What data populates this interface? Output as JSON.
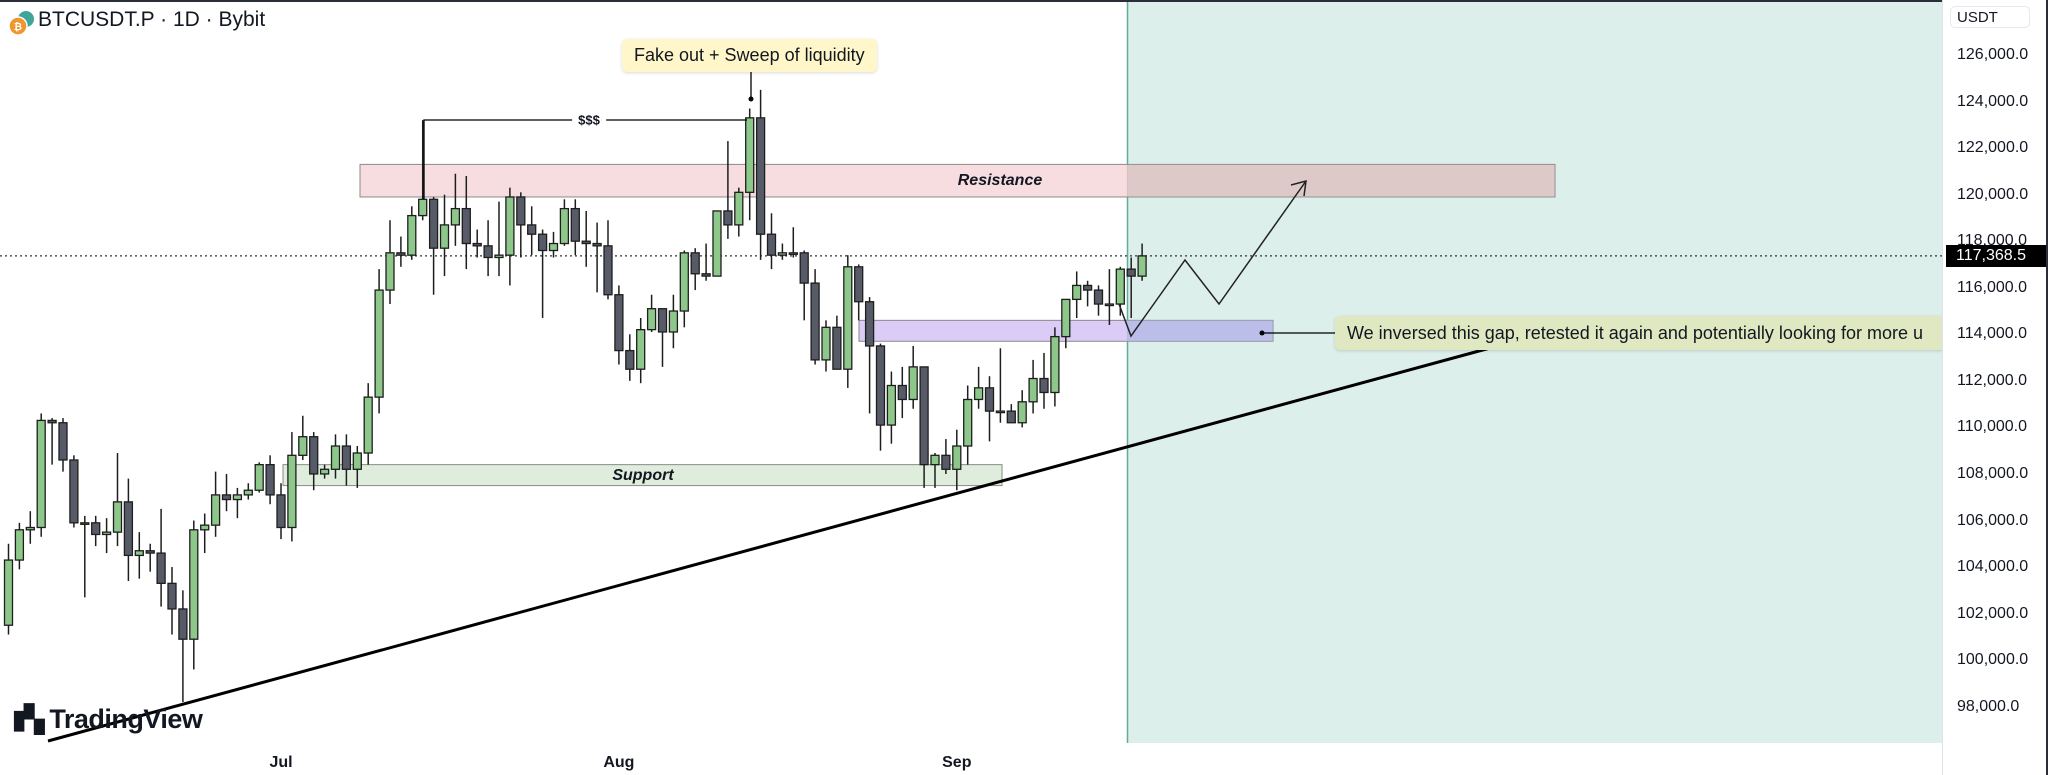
{
  "header": {
    "title": "BTCUSDT.P · 1D · Bybit",
    "icon": "bitcoin-coin-icon"
  },
  "axis": {
    "unit": "USDT",
    "current_price_label": "117,368.5"
  },
  "annotations": {
    "fake_out": "Fake out + Sweep of liquidity",
    "liquidity": "$$$",
    "resistance": "Resistance",
    "support": "Support",
    "gap_note": "We inversed this gap, retested it again and potentially looking for more u"
  },
  "logo": "TradingView",
  "colors": {
    "up": "#8dc78a",
    "down": "#565b67",
    "resistance": "#f6d7da",
    "support": "#dcebd9",
    "gap": "#d6c6f5",
    "projection_zone": "#dcefea"
  },
  "chart_data": {
    "type": "candlestick",
    "symbol": "BTCUSDT.P",
    "interval": "1D",
    "ylim": [
      97000,
      127500
    ],
    "y_ticks": [
      "126,000.0",
      "124,000.0",
      "122,000.0",
      "120,000.0",
      "118,000.0",
      "116,000.0",
      "114,000.0",
      "112,000.0",
      "110,000.0",
      "108,000.0",
      "106,000.0",
      "104,000.0",
      "102,000.0",
      "100,000.0",
      "98,000.0"
    ],
    "x_ticks": [
      {
        "label": "Jul",
        "date": "2025-07-01"
      },
      {
        "label": "Aug",
        "date": "2025-08-01"
      },
      {
        "label": "Sep",
        "date": "2025-09-01"
      }
    ],
    "current_price": 117368.5,
    "zones": {
      "resistance": [
        119900,
        121300
      ],
      "support": [
        107500,
        108400
      ],
      "gap": [
        113700,
        114600
      ]
    },
    "columns": [
      "date",
      "open",
      "high",
      "low",
      "close"
    ],
    "candles": [
      [
        "2025-06-06",
        101500,
        105000,
        101100,
        104300
      ],
      [
        "2025-06-07",
        104300,
        105900,
        103900,
        105600
      ],
      [
        "2025-06-08",
        105600,
        106400,
        105000,
        105700
      ],
      [
        "2025-06-09",
        105700,
        110600,
        105300,
        110300
      ],
      [
        "2025-06-10",
        110300,
        110400,
        108400,
        110200
      ],
      [
        "2025-06-11",
        110200,
        110400,
        108100,
        108600
      ],
      [
        "2025-06-12",
        108600,
        108800,
        105700,
        105900
      ],
      [
        "2025-06-13",
        105900,
        106200,
        102700,
        105900
      ],
      [
        "2025-06-14",
        105900,
        106200,
        104900,
        105400
      ],
      [
        "2025-06-15",
        105400,
        106100,
        104600,
        105500
      ],
      [
        "2025-06-16",
        105500,
        108900,
        104900,
        106800
      ],
      [
        "2025-06-17",
        106800,
        107800,
        103400,
        104500
      ],
      [
        "2025-06-18",
        104500,
        105500,
        103500,
        104700
      ],
      [
        "2025-06-19",
        104700,
        105000,
        103800,
        104600
      ],
      [
        "2025-06-20",
        104600,
        106500,
        102300,
        103300
      ],
      [
        "2025-06-21",
        103300,
        104000,
        101100,
        102200
      ],
      [
        "2025-06-22",
        102200,
        103000,
        98200,
        100900
      ],
      [
        "2025-06-23",
        100900,
        106000,
        99600,
        105600
      ],
      [
        "2025-06-24",
        105600,
        106300,
        104600,
        105800
      ],
      [
        "2025-06-25",
        105800,
        108100,
        105300,
        107100
      ],
      [
        "2025-06-26",
        107100,
        108000,
        106400,
        106900
      ],
      [
        "2025-06-27",
        106900,
        107400,
        106100,
        107100
      ],
      [
        "2025-06-28",
        107100,
        107600,
        106900,
        107300
      ],
      [
        "2025-06-29",
        107300,
        108500,
        107200,
        108400
      ],
      [
        "2025-06-30",
        108400,
        108800,
        106700,
        107100
      ],
      [
        "2025-07-01",
        107100,
        107600,
        105200,
        105700
      ],
      [
        "2025-07-02",
        105700,
        109800,
        105100,
        108800
      ],
      [
        "2025-07-03",
        108800,
        110500,
        108600,
        109600
      ],
      [
        "2025-07-04",
        109600,
        109800,
        107300,
        108000
      ],
      [
        "2025-07-05",
        108000,
        108400,
        107800,
        108200
      ],
      [
        "2025-07-06",
        108200,
        109700,
        107800,
        109200
      ],
      [
        "2025-07-07",
        109200,
        109700,
        107500,
        108200
      ],
      [
        "2025-07-08",
        108200,
        109200,
        107400,
        108900
      ],
      [
        "2025-07-09",
        108900,
        111900,
        108400,
        111300
      ],
      [
        "2025-07-10",
        111300,
        116800,
        110600,
        115900
      ],
      [
        "2025-07-11",
        115900,
        118900,
        115300,
        117500
      ],
      [
        "2025-07-12",
        117500,
        118200,
        116900,
        117400
      ],
      [
        "2025-07-13",
        117400,
        119500,
        117200,
        119100
      ],
      [
        "2025-07-14",
        119100,
        123200,
        118900,
        119800
      ],
      [
        "2025-07-15",
        119800,
        119900,
        115700,
        117700
      ],
      [
        "2025-07-16",
        117700,
        120000,
        116500,
        118700
      ],
      [
        "2025-07-17",
        118700,
        120900,
        117800,
        119400
      ],
      [
        "2025-07-18",
        119400,
        120800,
        116800,
        117900
      ],
      [
        "2025-07-19",
        117900,
        118500,
        117300,
        117800
      ],
      [
        "2025-07-20",
        117800,
        118900,
        116500,
        117300
      ],
      [
        "2025-07-21",
        117300,
        119700,
        116500,
        117400
      ],
      [
        "2025-07-22",
        117400,
        120300,
        116100,
        119900
      ],
      [
        "2025-07-23",
        119900,
        120100,
        117300,
        118700
      ],
      [
        "2025-07-24",
        118700,
        119500,
        117400,
        118300
      ],
      [
        "2025-07-25",
        118300,
        118500,
        114700,
        117600
      ],
      [
        "2025-07-26",
        117600,
        118400,
        117300,
        117900
      ],
      [
        "2025-07-27",
        117900,
        119800,
        117800,
        119400
      ],
      [
        "2025-07-28",
        119400,
        119800,
        117400,
        118000
      ],
      [
        "2025-07-29",
        118000,
        119300,
        116900,
        117900
      ],
      [
        "2025-07-30",
        117900,
        118800,
        115800,
        117800
      ],
      [
        "2025-07-31",
        117800,
        118900,
        115500,
        115700
      ],
      [
        "2025-08-01",
        115700,
        116100,
        112700,
        113300
      ],
      [
        "2025-08-02",
        113300,
        114000,
        112000,
        112500
      ],
      [
        "2025-08-03",
        112500,
        114700,
        111900,
        114200
      ],
      [
        "2025-08-04",
        114200,
        115700,
        114100,
        115100
      ],
      [
        "2025-08-05",
        115100,
        115100,
        112600,
        114100
      ],
      [
        "2025-08-06",
        114100,
        115700,
        113400,
        115000
      ],
      [
        "2025-08-07",
        115000,
        117600,
        114300,
        117500
      ],
      [
        "2025-08-08",
        117500,
        117700,
        115900,
        116600
      ],
      [
        "2025-08-09",
        116600,
        117900,
        116300,
        116500
      ],
      [
        "2025-08-10",
        116500,
        119300,
        116500,
        119300
      ],
      [
        "2025-08-11",
        119300,
        122300,
        118100,
        118700
      ],
      [
        "2025-08-12",
        118700,
        120300,
        118200,
        120100
      ],
      [
        "2025-08-13",
        120100,
        123700,
        118900,
        123300
      ],
      [
        "2025-08-14",
        123300,
        124500,
        117200,
        118300
      ],
      [
        "2025-08-15",
        118300,
        119200,
        116800,
        117400
      ],
      [
        "2025-08-16",
        117400,
        117900,
        117200,
        117500
      ],
      [
        "2025-08-17",
        117500,
        118600,
        117300,
        117500
      ],
      [
        "2025-08-18",
        117500,
        117600,
        114600,
        116200
      ],
      [
        "2025-08-19",
        116200,
        116800,
        112700,
        112900
      ],
      [
        "2025-08-20",
        112900,
        114600,
        112400,
        114300
      ],
      [
        "2025-08-21",
        114300,
        114800,
        112600,
        112500
      ],
      [
        "2025-08-22",
        112500,
        117400,
        111700,
        116900
      ],
      [
        "2025-08-23",
        116900,
        117000,
        114600,
        115400
      ],
      [
        "2025-08-24",
        115400,
        115600,
        110600,
        113500
      ],
      [
        "2025-08-25",
        113500,
        113600,
        109000,
        110100
      ],
      [
        "2025-08-26",
        110100,
        112400,
        109300,
        111800
      ],
      [
        "2025-08-27",
        111800,
        112600,
        110400,
        111200
      ],
      [
        "2025-08-28",
        111200,
        113500,
        110800,
        112600
      ],
      [
        "2025-08-29",
        112600,
        112600,
        107400,
        108400
      ],
      [
        "2025-08-30",
        108400,
        108900,
        107400,
        108800
      ],
      [
        "2025-08-31",
        108800,
        109500,
        108000,
        108200
      ],
      [
        "2025-09-01",
        108200,
        109900,
        107300,
        109200
      ],
      [
        "2025-09-02",
        109200,
        111800,
        108400,
        111200
      ],
      [
        "2025-09-03",
        111200,
        112600,
        110800,
        111700
      ],
      [
        "2025-09-04",
        111700,
        112200,
        109400,
        110700
      ],
      [
        "2025-09-05",
        110700,
        113400,
        110200,
        110700
      ],
      [
        "2025-09-06",
        110700,
        111000,
        110200,
        110200
      ],
      [
        "2025-09-07",
        110200,
        111600,
        110000,
        111100
      ],
      [
        "2025-09-08",
        111100,
        112900,
        110600,
        112100
      ],
      [
        "2025-09-09",
        112100,
        113200,
        110800,
        111500
      ],
      [
        "2025-09-10",
        111500,
        114300,
        110900,
        113900
      ],
      [
        "2025-09-11",
        113900,
        115500,
        113400,
        115500
      ],
      [
        "2025-09-12",
        115500,
        116700,
        114700,
        116100
      ],
      [
        "2025-09-13",
        116100,
        116300,
        115200,
        115900
      ],
      [
        "2025-09-14",
        115900,
        116100,
        114800,
        115300
      ],
      [
        "2025-09-15",
        115300,
        116800,
        114400,
        115300
      ],
      [
        "2025-09-16",
        115300,
        116900,
        114800,
        116800
      ],
      [
        "2025-09-17",
        116800,
        117300,
        114700,
        116500
      ],
      [
        "2025-09-18",
        116500,
        117900,
        116300,
        117368.5
      ]
    ]
  }
}
